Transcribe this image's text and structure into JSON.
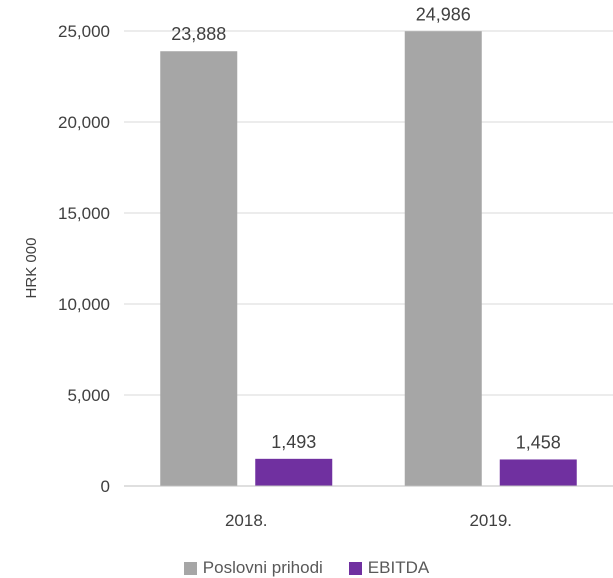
{
  "chart_data": {
    "type": "bar",
    "categories": [
      "2018.",
      "2019."
    ],
    "series": [
      {
        "name": "Poslovni prihodi",
        "values": [
          23888,
          24986
        ],
        "labels": [
          "23,888",
          "24,986"
        ],
        "color": "#a6a6a6"
      },
      {
        "name": "EBITDA",
        "values": [
          1493,
          1458
        ],
        "labels": [
          "1,493",
          "1,458"
        ],
        "color": "#7030a0"
      }
    ],
    "ylabel": "HRK 000",
    "ylim": [
      0,
      25000
    ],
    "yticks": [
      0,
      5000,
      10000,
      15000,
      20000,
      25000
    ],
    "ytick_labels": [
      "0",
      "5,000",
      "10,000",
      "15,000",
      "20,000",
      "25,000"
    ],
    "grid": true,
    "legend": "bottom"
  }
}
